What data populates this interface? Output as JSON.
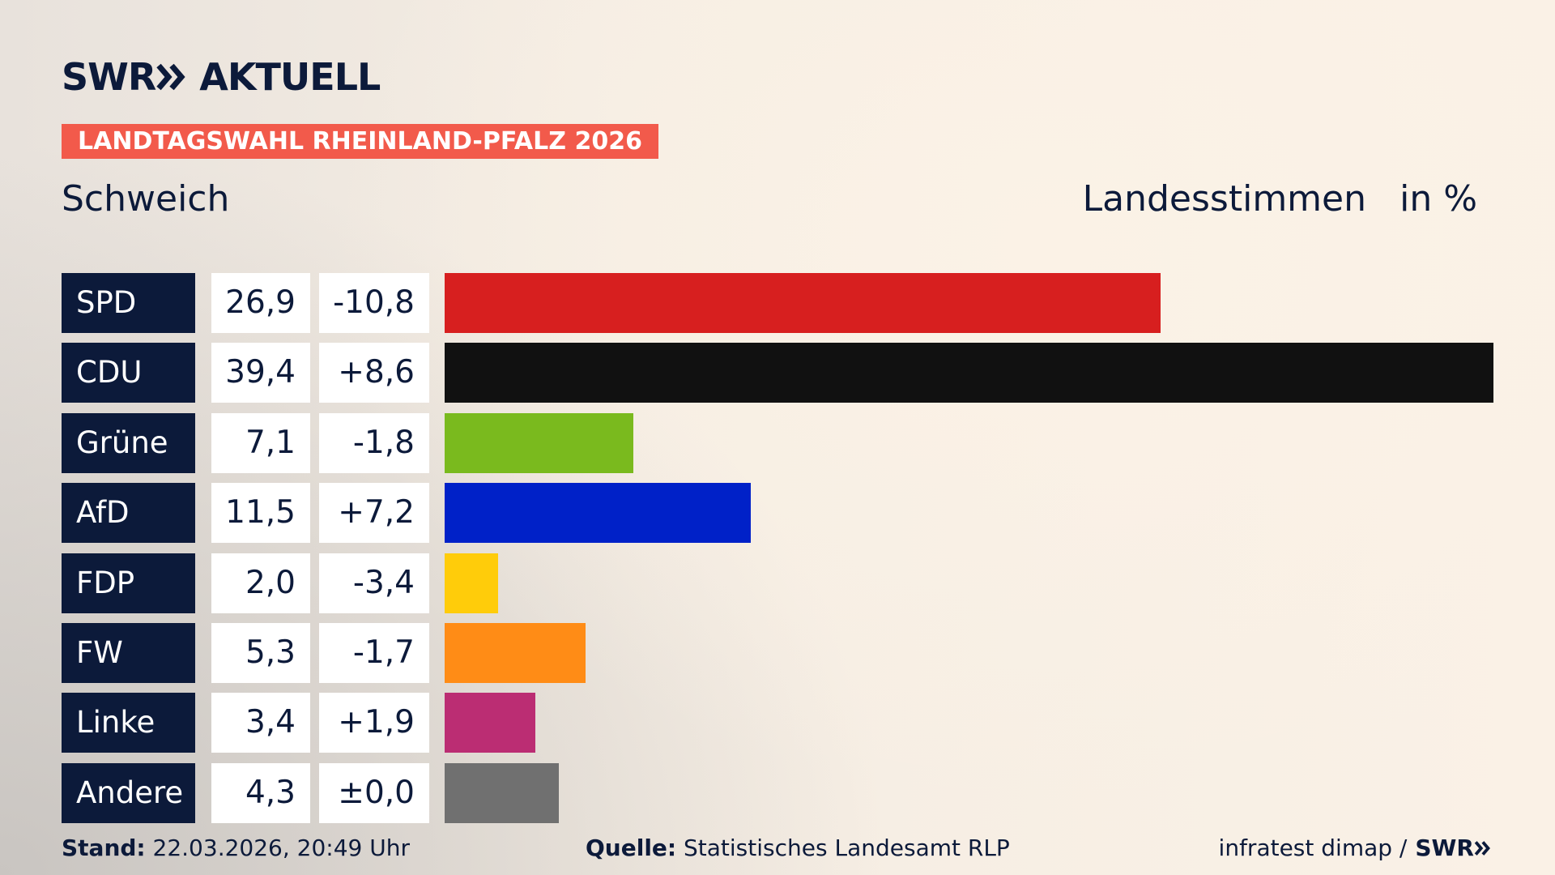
{
  "header": {
    "brand": "SWR",
    "brand_suffix": "AKTUELL",
    "tag": "LANDTAGSWAHL RHEINLAND-PFALZ 2026"
  },
  "chart_data": {
    "type": "bar",
    "title": "Schweich",
    "subtitle": "Landesstimmen",
    "unit": "in %",
    "categories": [
      "SPD",
      "CDU",
      "Grüne",
      "AfD",
      "FDP",
      "FW",
      "Linke",
      "Andere"
    ],
    "values": [
      26.9,
      39.4,
      7.1,
      11.5,
      2.0,
      5.3,
      3.4,
      4.3
    ],
    "value_labels": [
      "26,9",
      "39,4",
      "7,1",
      "11,5",
      "2,0",
      "5,3",
      "3,4",
      "4,3"
    ],
    "changes": [
      -10.8,
      8.6,
      -1.8,
      7.2,
      -3.4,
      -1.7,
      1.9,
      0.0
    ],
    "change_labels": [
      "-10,8",
      "+8,6",
      "-1,8",
      "+7,2",
      "-3,4",
      "-1,7",
      "+1,9",
      "±0,0"
    ],
    "colors": [
      "#d71f1f",
      "#111111",
      "#7aba1e",
      "#0021c8",
      "#ffcc0a",
      "#ff8c16",
      "#bb2d73",
      "#707070"
    ]
  },
  "footer": {
    "stand_label": "Stand:",
    "stand": "22.03.2026, 20:49 Uhr",
    "source_label": "Quelle:",
    "source": "Statistisches Landesamt RLP",
    "credit": "infratest dimap /",
    "credit_brand": "SWR"
  }
}
